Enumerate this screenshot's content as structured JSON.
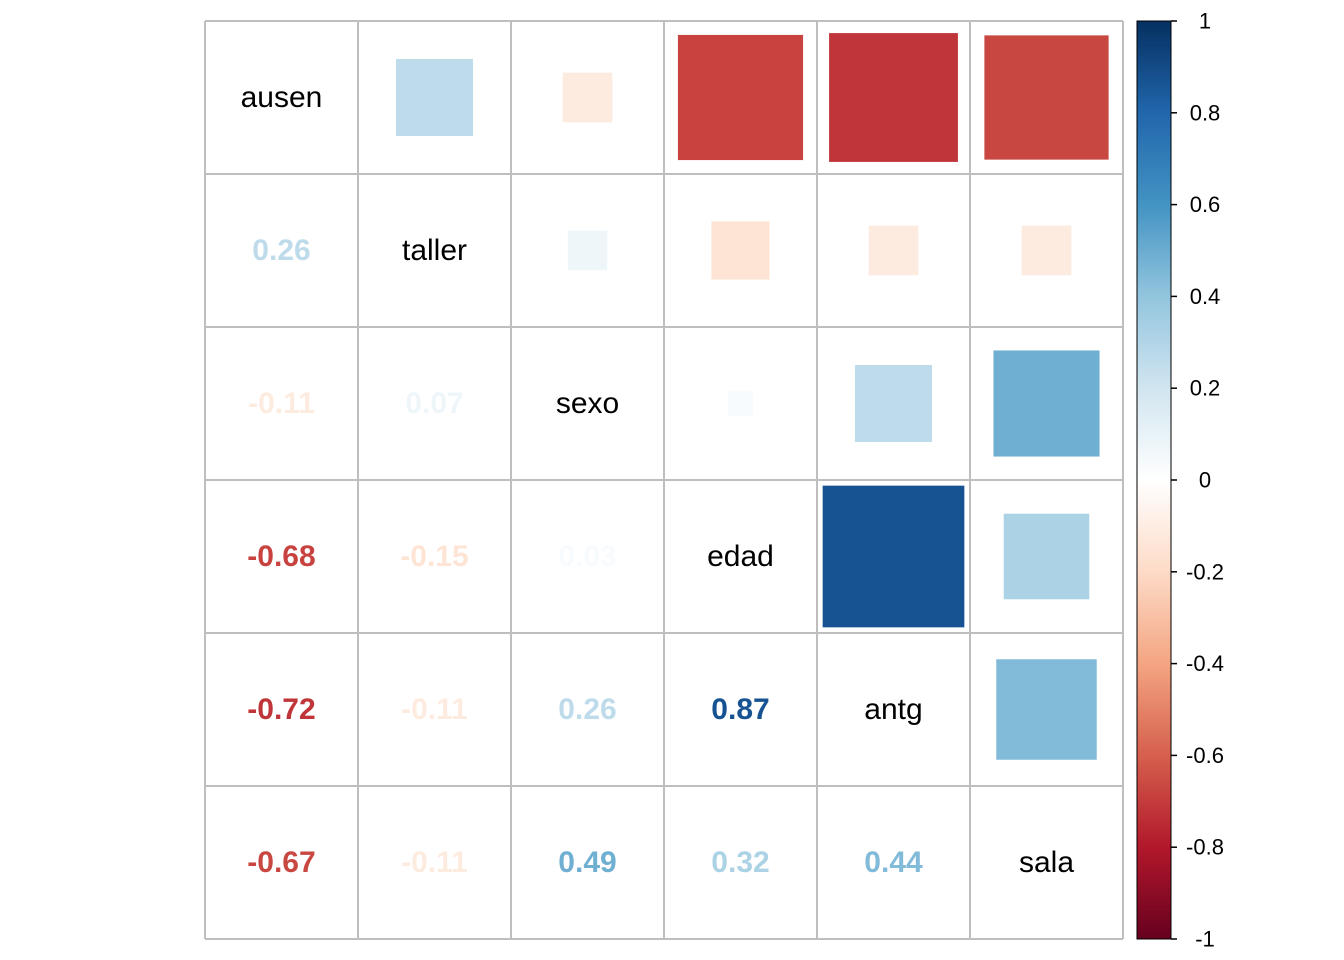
{
  "chart_data": {
    "type": "heatmap",
    "title": "",
    "variables": [
      "ausen",
      "taller",
      "sexo",
      "edad",
      "antg",
      "sala"
    ],
    "matrix": [
      [
        1,
        0.26,
        -0.11,
        -0.68,
        -0.72,
        -0.67
      ],
      [
        0.26,
        1,
        0.07,
        -0.15,
        -0.11,
        -0.11
      ],
      [
        -0.11,
        0.07,
        1,
        0.03,
        0.26,
        0.49
      ],
      [
        -0.68,
        -0.15,
        0.03,
        1,
        0.87,
        0.32
      ],
      [
        -0.72,
        -0.11,
        0.26,
        0.87,
        1,
        0.44
      ],
      [
        -0.67,
        -0.11,
        0.49,
        0.32,
        0.44,
        1
      ]
    ],
    "lower_labels": [
      {
        "row": 1,
        "col": 0,
        "text": "0.26"
      },
      {
        "row": 2,
        "col": 0,
        "text": "-0.11"
      },
      {
        "row": 2,
        "col": 1,
        "text": "0.07"
      },
      {
        "row": 3,
        "col": 0,
        "text": "-0.68"
      },
      {
        "row": 3,
        "col": 1,
        "text": "-0.15"
      },
      {
        "row": 3,
        "col": 2,
        "text": "0.03"
      },
      {
        "row": 4,
        "col": 0,
        "text": "-0.72"
      },
      {
        "row": 4,
        "col": 1,
        "text": "-0.11"
      },
      {
        "row": 4,
        "col": 2,
        "text": "0.26"
      },
      {
        "row": 4,
        "col": 3,
        "text": "0.87"
      },
      {
        "row": 5,
        "col": 0,
        "text": "-0.67"
      },
      {
        "row": 5,
        "col": 1,
        "text": "-0.11"
      },
      {
        "row": 5,
        "col": 2,
        "text": "0.49"
      },
      {
        "row": 5,
        "col": 3,
        "text": "0.32"
      },
      {
        "row": 5,
        "col": 4,
        "text": "0.44"
      }
    ],
    "upper_display": "square",
    "lower_display": "number",
    "diagonal_display": "variable-name",
    "colorbar": {
      "range": [
        -1,
        1
      ],
      "ticks": [
        {
          "value": 1,
          "label": "1"
        },
        {
          "value": 0.8,
          "label": "0.8"
        },
        {
          "value": 0.6,
          "label": "0.6"
        },
        {
          "value": 0.4,
          "label": "0.4"
        },
        {
          "value": 0.2,
          "label": "0.2"
        },
        {
          "value": 0,
          "label": "0"
        },
        {
          "value": -0.2,
          "label": "-0.2"
        },
        {
          "value": -0.4,
          "label": "-0.4"
        },
        {
          "value": -0.6,
          "label": "-0.6"
        },
        {
          "value": -0.8,
          "label": "-0.8"
        },
        {
          "value": -1,
          "label": "-1"
        }
      ],
      "placement": "right"
    },
    "palette": [
      "#67001f",
      "#b2182b",
      "#d6604d",
      "#f4a582",
      "#fddbc7",
      "#ffffff",
      "#d1e5f0",
      "#92c5de",
      "#4393c3",
      "#2166ac",
      "#053061"
    ]
  }
}
